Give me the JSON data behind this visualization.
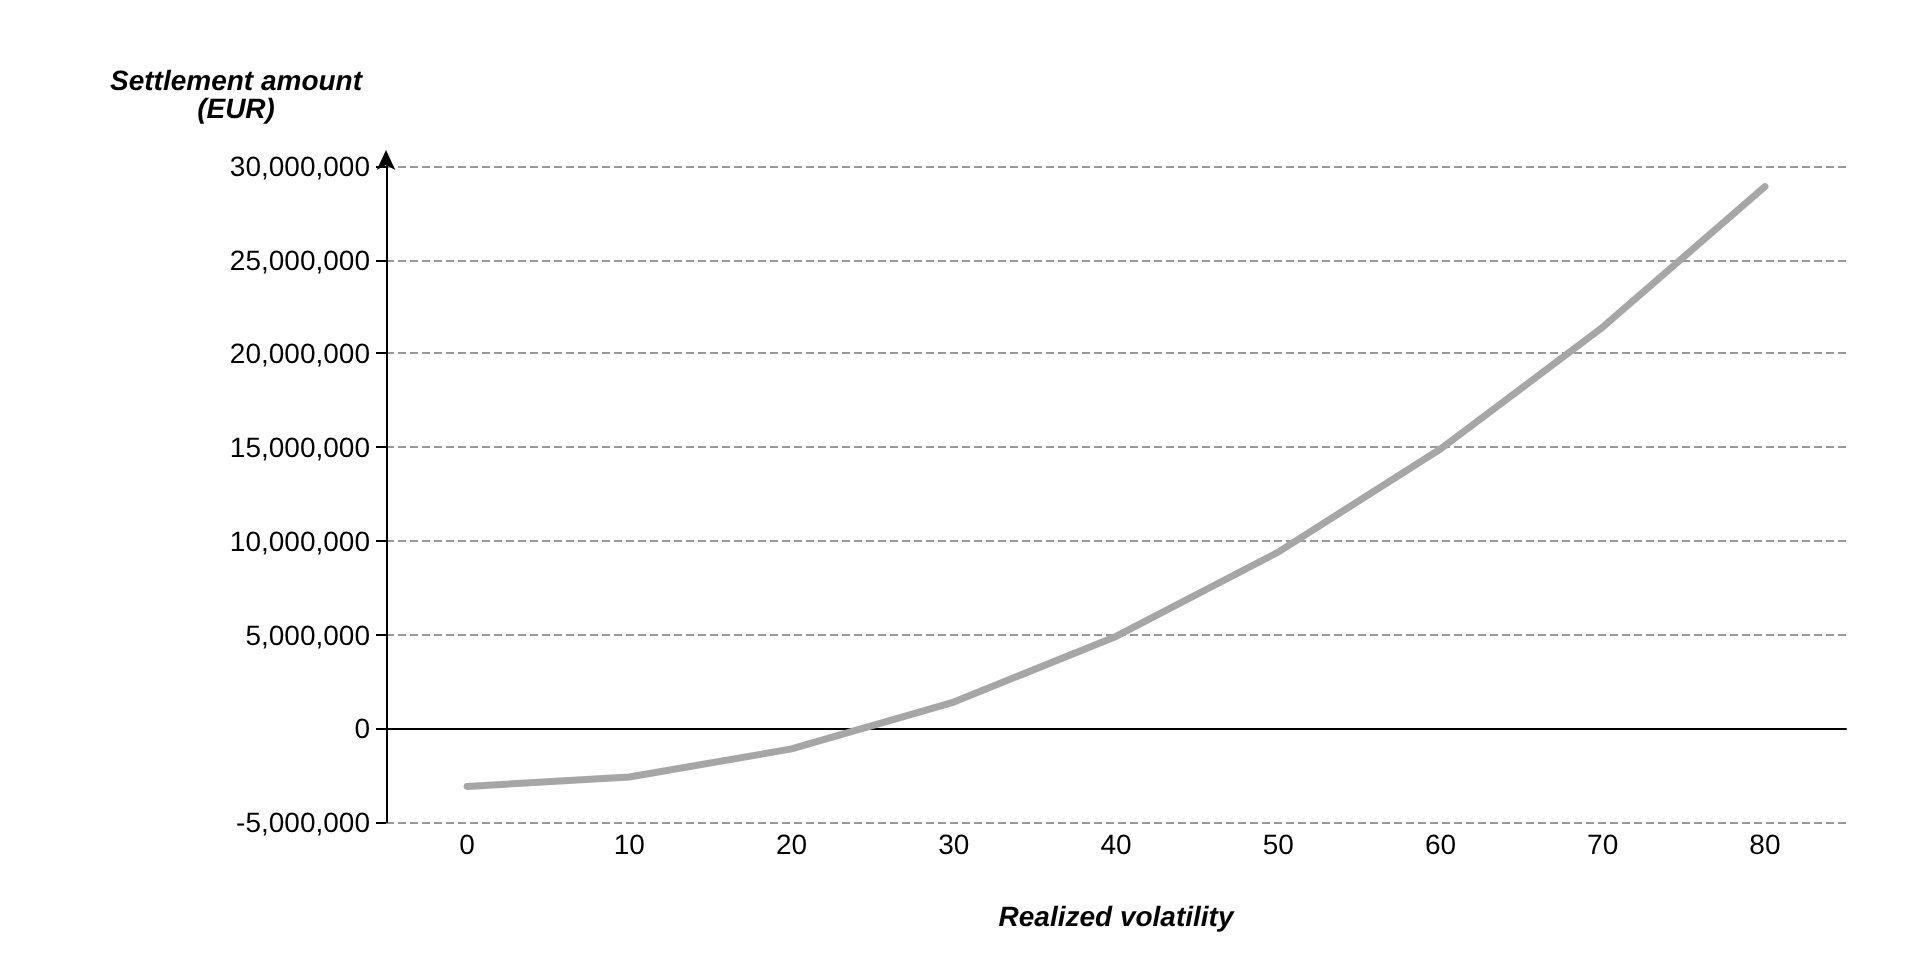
{
  "chart_data": {
    "type": "line",
    "xlabel": "Realized volatility",
    "ylabel": "Settlement amount\n(EUR)",
    "categories": [
      "0",
      "10",
      "20",
      "30",
      "40",
      "50",
      "60",
      "70",
      "80"
    ],
    "series": [
      {
        "color": "#a6a6a6",
        "values": [
          -3100000,
          -2600000,
          -1100000,
          1400000,
          4900000,
          9400000,
          14900000,
          21400000,
          28900000
        ]
      }
    ],
    "ylim": [
      -5000000,
      30000000
    ],
    "yticks": [
      {
        "value": -5000000,
        "label": "-5,000,000"
      },
      {
        "value": 0,
        "label": "0"
      },
      {
        "value": 5000000,
        "label": "5,000,000"
      },
      {
        "value": 10000000,
        "label": "10,000,000"
      },
      {
        "value": 15000000,
        "label": "15,000,000"
      },
      {
        "value": 20000000,
        "label": "20,000,000"
      },
      {
        "value": 25000000,
        "label": "25,000,000"
      },
      {
        "value": 30000000,
        "label": "30,000,000"
      }
    ],
    "grid": "y",
    "marker": "none",
    "line_style": "solid"
  }
}
